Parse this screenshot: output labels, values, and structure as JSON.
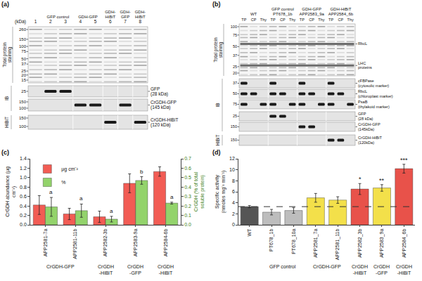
{
  "blots": [
    {
      "letter": "(a)",
      "markers_label": "(kDa)",
      "lane_labels": [
        "1",
        "2",
        "3",
        "4",
        "5",
        "6",
        "7",
        "8"
      ],
      "headers": [
        {
          "text": "GFP control",
          "lanes": [
            2,
            3
          ]
        },
        {
          "text": "GDH-GFP",
          "lanes": [
            4,
            5
          ]
        },
        {
          "text": "GDH-HiBiT",
          "lanes": [
            6
          ]
        },
        {
          "text": "GDH-GFP",
          "lanes": [
            7
          ]
        },
        {
          "text": "GDH-HiBiT",
          "lanes": [
            8
          ]
        }
      ],
      "rows": [
        {
          "section": "Total protein staining",
          "kind": "stain",
          "markers": [
            260,
            150,
            100,
            75,
            50,
            37,
            25,
            20,
            15
          ],
          "labels": []
        },
        {
          "section": "IB",
          "kind": "bands",
          "markers": [
            25
          ],
          "band_lanes": [
            2,
            3
          ],
          "labels": [
            {
              "text": [
                "GFP",
                "(28 kDa)"
              ]
            }
          ]
        },
        {
          "section": "IB",
          "kind": "bands",
          "markers": [
            150,
            100
          ],
          "band_lanes": [
            4,
            5,
            7
          ],
          "labels": [
            {
              "text": [
                "CrGDH-GFP",
                "(145 kDa)"
              ]
            }
          ]
        },
        {
          "section": "HiBiT",
          "kind": "bands",
          "markers": [
            150,
            100
          ],
          "band_lanes": [
            6,
            8
          ],
          "labels": [
            {
              "text": [
                "CrGDH-HiBiT",
                "(120 kDa)"
              ]
            }
          ]
        }
      ]
    },
    {
      "letter": "(b)",
      "lane_labels": [
        "TP",
        "CP",
        "Thy",
        "TP",
        "CP",
        "Thy",
        "TP",
        "CP",
        "Thy",
        "TP",
        "CP",
        "Thy"
      ],
      "headers": [
        {
          "text": "WT",
          "lanes": [
            1,
            2,
            3
          ]
        },
        {
          "text": "GFP control PT678_1b",
          "lanes": [
            4,
            5,
            6
          ]
        },
        {
          "text": "GDH-GFP APP2583_9a",
          "lanes": [
            7,
            8,
            9
          ]
        },
        {
          "text": "GDH-HiBiT APP2584_6b",
          "lanes": [
            10,
            11,
            12
          ]
        }
      ],
      "rows": [
        {
          "section": "Total protein staining",
          "kind": "stain",
          "markers": [
            100,
            75,
            50,
            37,
            25,
            20
          ],
          "labels": [
            {
              "text": [
                "RbcL"
              ],
              "at": 55
            },
            {
              "text": [
                "LHC",
                "proteins"
              ],
              "at": 26
            }
          ]
        },
        {
          "section": "IB",
          "kind": "bands",
          "markers": [
            37
          ],
          "band_lanes": [
            1,
            4,
            7,
            10
          ],
          "labels": [
            {
              "text": [
                "cFBPase",
                "(cytosolic marker)"
              ]
            }
          ]
        },
        {
          "section": "IB",
          "kind": "bands",
          "markers": [
            50
          ],
          "band_lanes": [
            1,
            2,
            4,
            5,
            7,
            8,
            10,
            11
          ],
          "labels": [
            {
              "text": [
                "RbcL",
                "(chloroplast marker)"
              ]
            }
          ]
        },
        {
          "section": "IB",
          "kind": "bands",
          "markers": [
            75
          ],
          "band_lanes": [
            1,
            3,
            4,
            6,
            7,
            9,
            10,
            12
          ],
          "labels": [
            {
              "text": [
                "PsaB",
                "(thylakoid marker)"
              ]
            }
          ]
        },
        {
          "section": "IB",
          "kind": "bands",
          "markers": [
            25
          ],
          "band_lanes": [
            4,
            5
          ],
          "labels": [
            {
              "text": [
                "GFP",
                "(28 kDa)"
              ]
            }
          ]
        },
        {
          "section": "IB",
          "kind": "bands",
          "markers": [
            150
          ],
          "band_lanes": [
            7,
            8
          ],
          "labels": [
            {
              "text": [
                "CrGDH-GFP",
                "(145kDa)"
              ]
            }
          ]
        },
        {
          "section": "HiBiT",
          "kind": "bands",
          "markers": [
            150
          ],
          "band_lanes": [
            10,
            11
          ],
          "labels": [
            {
              "text": [
                "CrGDH-HiBiT",
                "(120kDa)"
              ]
            }
          ]
        }
      ]
    }
  ],
  "chart_data": [
    {
      "type": "bar",
      "letter": "(c)",
      "categories": [
        "APP2581-7a",
        "APP2581-11b",
        "APP2582-3b",
        "APP2583-9a",
        "APP2584-6b"
      ],
      "groups": [
        {
          "label": "CrGDH-GFP",
          "members": [
            "APP2581-7a",
            "APP2581-11b"
          ]
        },
        {
          "label": "CrGDH -HiBiT",
          "members": [
            "APP2582-3b"
          ]
        },
        {
          "label": "CrGDH -GFP",
          "members": [
            "APP2583-9a"
          ]
        },
        {
          "label": "CrGDH -HiBiT",
          "members": [
            "APP2584-6b"
          ]
        }
      ],
      "series": [
        {
          "name": "µg cm⁻²",
          "color": "#f25c54",
          "axis": "y",
          "values": [
            0.42,
            0.23,
            0.17,
            0.88,
            1.13
          ],
          "errors": [
            0.2,
            0.12,
            0.12,
            0.2,
            0.1
          ]
        },
        {
          "name": "%",
          "color": "#93d36b",
          "axis": "y2",
          "values": [
            0.19,
            0.15,
            0.06,
            0.47,
            0.23
          ],
          "errors": [
            0.1,
            0.07,
            0.03,
            0.04,
            0.01
          ],
          "significance": [
            "a",
            "a",
            "a",
            "b",
            "a"
          ]
        }
      ],
      "y_label": "CrGDH abundance (µg cm⁻²)",
      "y2_label": "CrGDH (% of total soluble protein)",
      "ylim": [
        0,
        1.4
      ],
      "yticks": [
        {
          "value": 0,
          "label": "0.0"
        },
        0.2,
        0.4,
        0.6,
        0.8,
        {
          "value": 1,
          "label": "1.0"
        },
        1.2,
        1.4
      ],
      "y2lim": [
        0,
        0.7
      ],
      "y2ticks": [
        {
          "value": 0,
          "label": "0.0"
        },
        0.1,
        0.2,
        0.3,
        0.4,
        0.5,
        0.6,
        0.7
      ],
      "legend": "upper left"
    },
    {
      "type": "bar",
      "letter": "(d)",
      "categories": [
        "WT",
        "PT678_1b",
        "PT678_10a",
        "APP2581_7a",
        "APP2581_11b",
        "APP2582_3b",
        "APP2583_9a",
        "APP2584_6b"
      ],
      "groups": [
        {
          "label": "GFP control",
          "members": [
            "PT678_1b",
            "PT678_10a"
          ]
        },
        {
          "label": "CrGDH-GFP",
          "members": [
            "APP2581_7a",
            "APP2581_11b"
          ]
        },
        {
          "label": "CrGDH -HiBiT",
          "members": [
            "APP2582_3b"
          ]
        },
        {
          "label": "CrGDH -GFP",
          "members": [
            "APP2583_9a"
          ]
        },
        {
          "label": "CrGDH -HiBiT",
          "members": [
            "APP2584_6b"
          ]
        }
      ],
      "values": [
        3.3,
        2.3,
        2.6,
        4.9,
        4.5,
        6.5,
        6.7,
        10.2
      ],
      "errors": [
        0.2,
        0.5,
        0.5,
        0.8,
        0.6,
        1.0,
        0.6,
        0.8
      ],
      "colors": [
        "#555555",
        "#bdbdbd",
        "#bdbdbd",
        "#f3e04a",
        "#f3e04a",
        "#e8524a",
        "#f3e04a",
        "#e8524a"
      ],
      "significance": [
        null,
        null,
        null,
        null,
        null,
        "*",
        "**",
        "***"
      ],
      "reference_line": 3.3,
      "y_label": "Specific activity (nmoles mg⁻¹ min⁻¹)",
      "ylim": [
        0,
        12
      ],
      "yticks": [
        0,
        2,
        4,
        6,
        8,
        10,
        12
      ]
    }
  ]
}
